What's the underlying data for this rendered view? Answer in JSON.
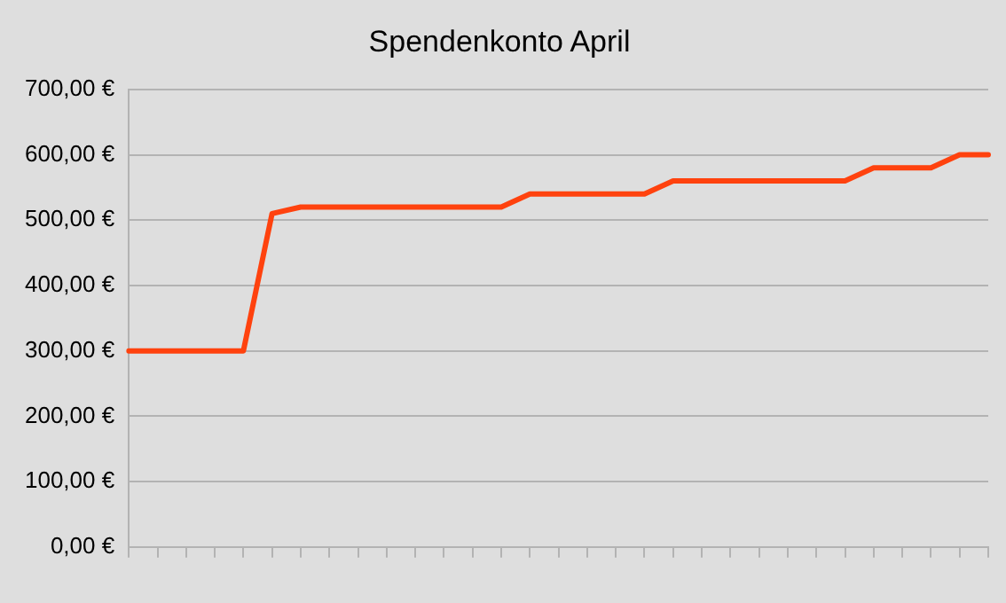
{
  "chart_data": {
    "type": "line",
    "title": "Spendenkonto April",
    "categories": [
      null,
      null,
      null,
      null,
      null,
      null,
      null,
      null,
      null,
      null,
      null,
      null,
      null,
      null,
      null,
      null,
      null,
      null,
      null,
      null,
      null,
      null,
      null,
      null,
      null,
      null,
      null,
      null,
      null,
      null,
      null
    ],
    "series": [
      {
        "color": "#ff420e",
        "values": [
          300,
          300,
          300,
          300,
          300,
          510,
          520,
          520,
          520,
          520,
          520,
          520,
          520,
          520,
          540,
          540,
          540,
          540,
          540,
          560,
          560,
          560,
          560,
          560,
          560,
          560,
          580,
          580,
          580,
          600,
          600
        ]
      }
    ],
    "ylim": [
      0,
      700
    ],
    "yticks": [
      {
        "value": 0,
        "label": "0,00 €"
      },
      {
        "value": 100,
        "label": "100,00 €"
      },
      {
        "value": 200,
        "label": "200,00 €"
      },
      {
        "value": 300,
        "label": "300,00 €"
      },
      {
        "value": 400,
        "label": "400,00 €"
      },
      {
        "value": 500,
        "label": "500,00 €"
      },
      {
        "value": 600,
        "label": "600,00 €"
      },
      {
        "value": 700,
        "label": "700,00 €"
      }
    ],
    "grid": "y",
    "legend": false,
    "marker": "none",
    "line_style": "solid"
  }
}
